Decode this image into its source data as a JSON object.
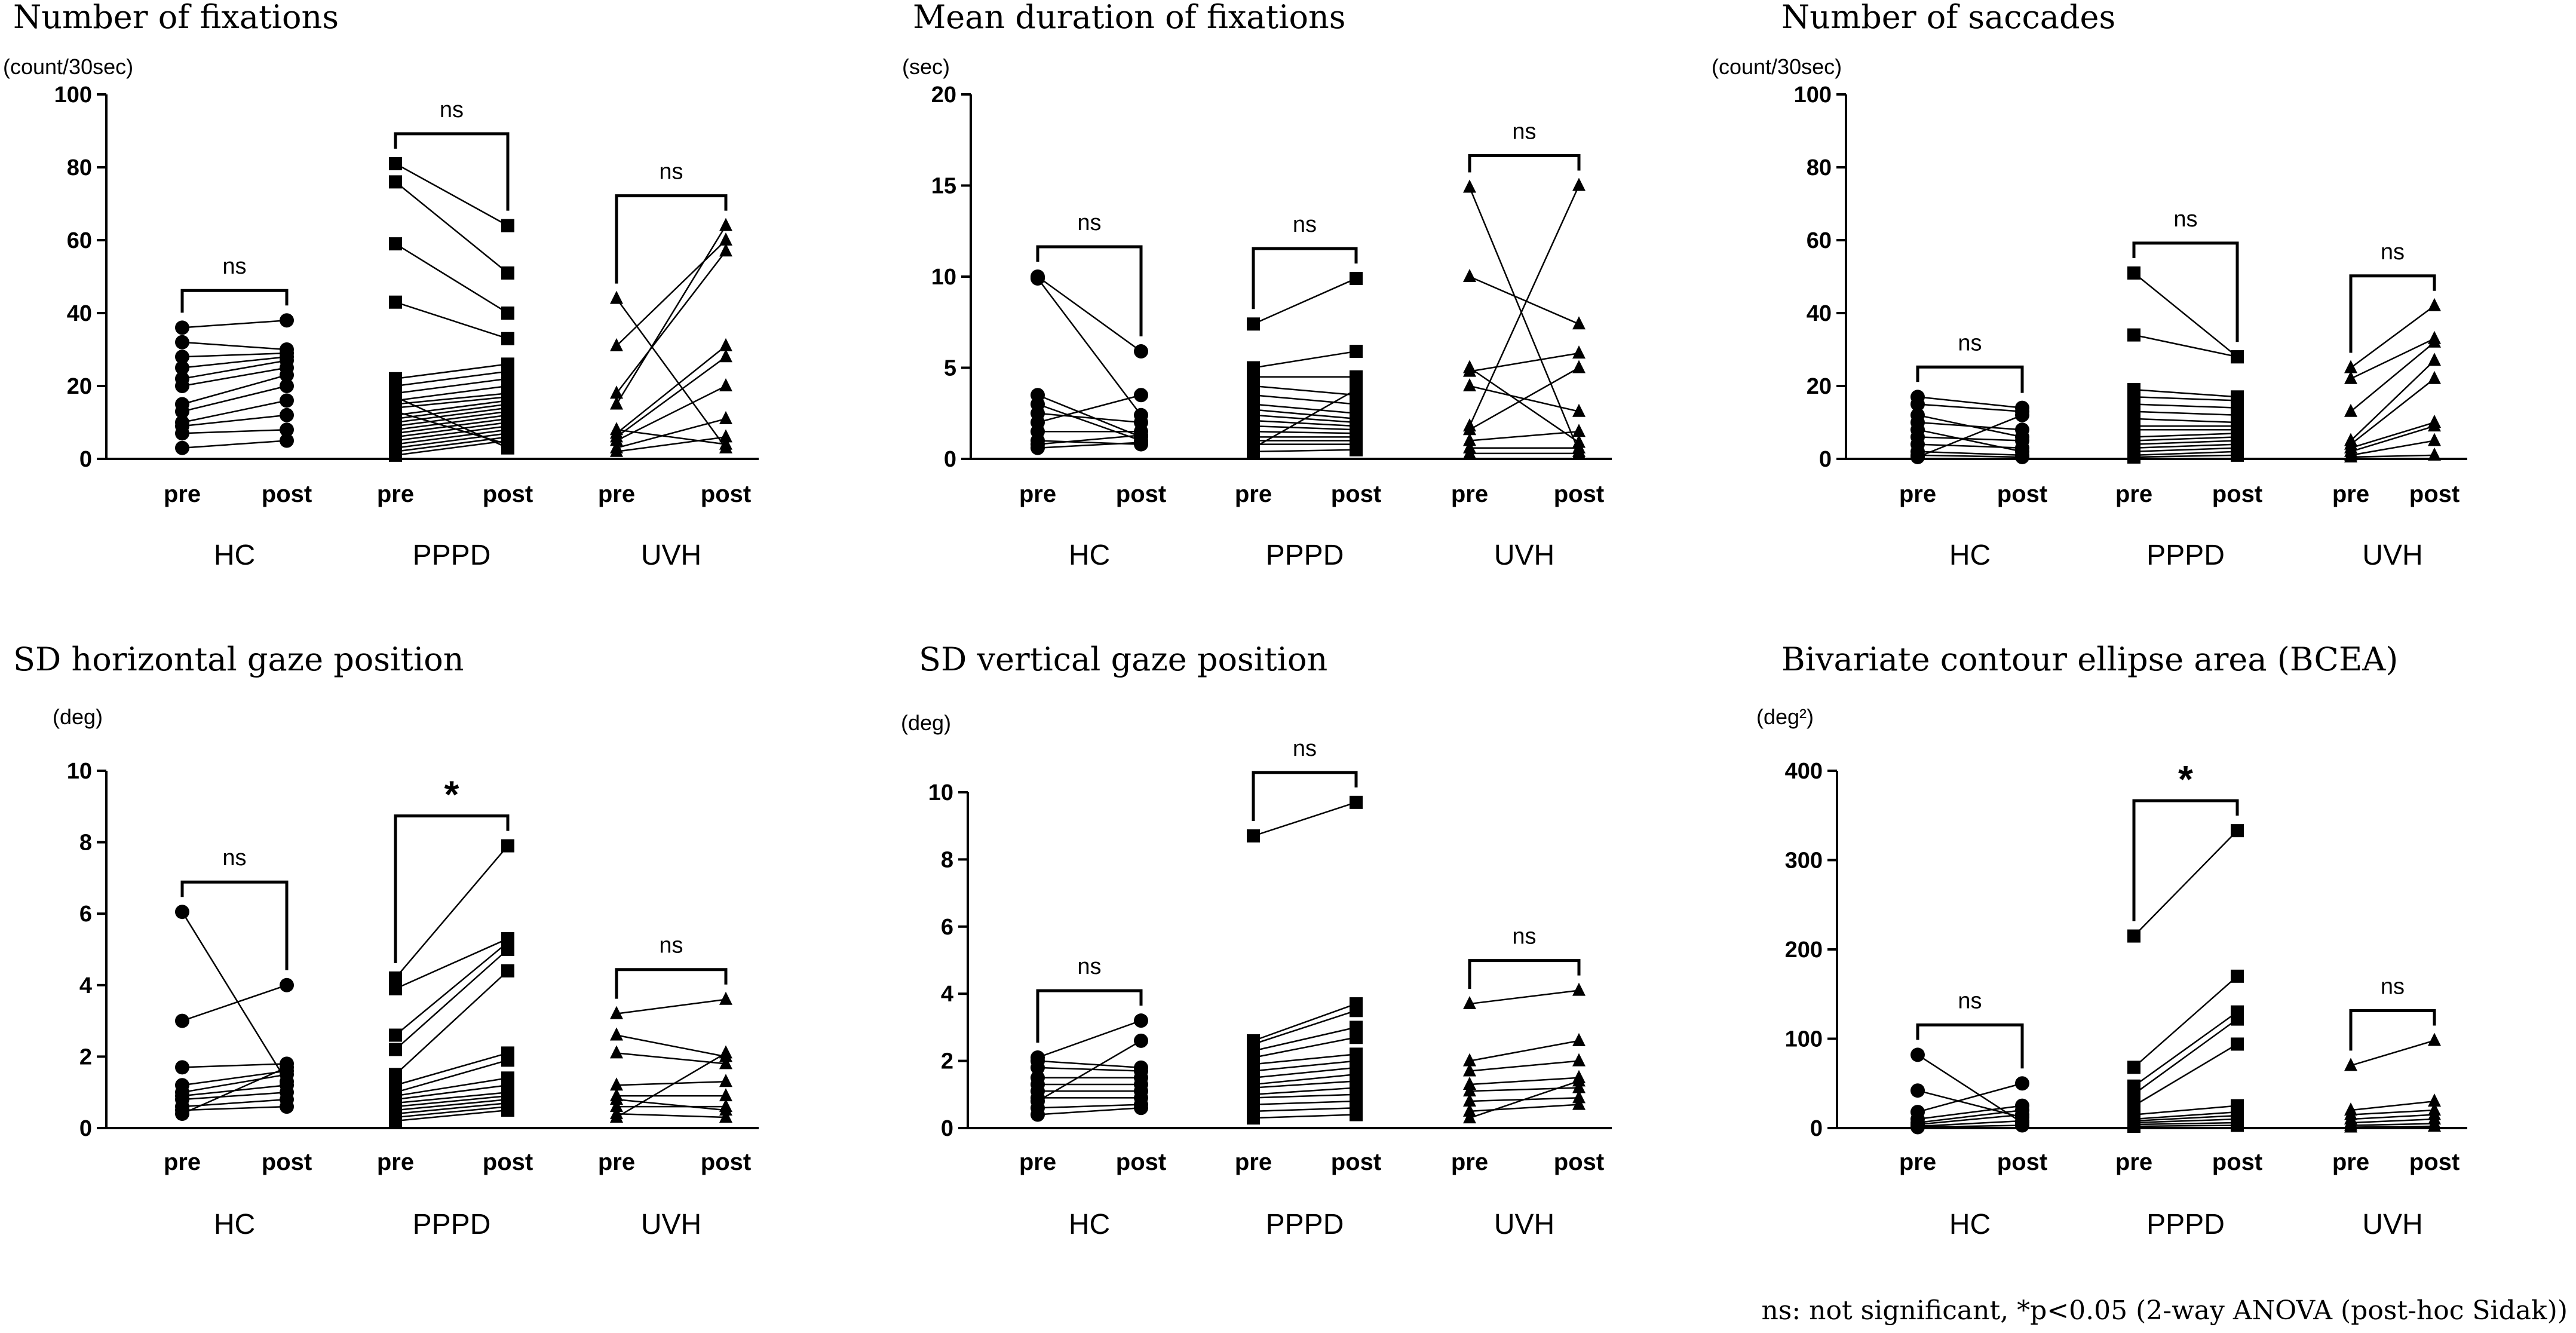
{
  "footnote": "ns: not significant, *p<0.05 (2-way ANOVA (post-hoc Sidak))",
  "chart_data": [
    {
      "type": "scatter",
      "title": "Number of fixations",
      "unit": "(count/30sec)",
      "ylim": [
        0,
        100
      ],
      "yticks": [
        0,
        20,
        40,
        60,
        80,
        100
      ],
      "timepoints": [
        "pre",
        "post"
      ],
      "groups": [
        {
          "name": "HC",
          "marker": "circle",
          "sig": "ns",
          "pairs": [
            [
              3,
              5
            ],
            [
              7,
              8
            ],
            [
              9,
              12
            ],
            [
              10,
              16
            ],
            [
              13,
              20
            ],
            [
              15,
              23
            ],
            [
              20,
              25
            ],
            [
              22,
              27
            ],
            [
              25,
              28
            ],
            [
              28,
              29
            ],
            [
              32,
              30
            ],
            [
              36,
              38
            ]
          ]
        },
        {
          "name": "PPPD",
          "marker": "square",
          "sig": "ns",
          "pairs": [
            [
              81,
              64
            ],
            [
              76,
              51
            ],
            [
              59,
              40
            ],
            [
              43,
              33
            ],
            [
              22,
              26
            ],
            [
              20,
              24
            ],
            [
              18,
              22
            ],
            [
              16,
              20
            ],
            [
              15,
              18
            ],
            [
              14,
              17
            ],
            [
              12,
              16
            ],
            [
              11,
              15
            ],
            [
              10,
              14
            ],
            [
              9,
              13
            ],
            [
              8,
              12
            ],
            [
              7,
              11
            ],
            [
              6,
              10
            ],
            [
              5,
              9
            ],
            [
              4,
              8
            ],
            [
              3,
              7
            ],
            [
              2,
              6
            ],
            [
              1,
              5
            ],
            [
              13,
              4
            ],
            [
              17,
              3
            ]
          ]
        },
        {
          "name": "UVH",
          "marker": "triangle",
          "sig": "ns",
          "pairs": [
            [
              44,
              3
            ],
            [
              31,
              60
            ],
            [
              18,
              57
            ],
            [
              15,
              64
            ],
            [
              7,
              31
            ],
            [
              6,
              28
            ],
            [
              5,
              20
            ],
            [
              3,
              11
            ],
            [
              2,
              6
            ],
            [
              8,
              4
            ]
          ]
        }
      ]
    },
    {
      "type": "scatter",
      "title": "Mean duration of fixations",
      "unit": "(sec)",
      "ylim": [
        0,
        20
      ],
      "yticks": [
        0,
        5,
        10,
        15,
        20
      ],
      "timepoints": [
        "pre",
        "post"
      ],
      "groups": [
        {
          "name": "HC",
          "marker": "circle",
          "sig": "ns",
          "pairs": [
            [
              10,
              5.9
            ],
            [
              9.9,
              2.4
            ],
            [
              3.5,
              1.2
            ],
            [
              3,
              1
            ],
            [
              2.5,
              2
            ],
            [
              2,
              3.5
            ],
            [
              1.5,
              1.5
            ],
            [
              1,
              0.8
            ],
            [
              0.8,
              1.3
            ],
            [
              0.6,
              0.9
            ]
          ]
        },
        {
          "name": "PPPD",
          "marker": "square",
          "sig": "ns",
          "pairs": [
            [
              7.4,
              9.9
            ],
            [
              5,
              5.9
            ],
            [
              4.5,
              4.5
            ],
            [
              4,
              3.5
            ],
            [
              3.5,
              3
            ],
            [
              3,
              2.5
            ],
            [
              2.7,
              2.2
            ],
            [
              2.4,
              2
            ],
            [
              2.1,
              1.8
            ],
            [
              1.8,
              1.6
            ],
            [
              1.5,
              1.4
            ],
            [
              1.2,
              1.2
            ],
            [
              1,
              1
            ],
            [
              0.8,
              0.8
            ],
            [
              0.6,
              3.8
            ],
            [
              0.4,
              0.5
            ]
          ]
        },
        {
          "name": "UVH",
          "marker": "triangle",
          "sig": "ns",
          "pairs": [
            [
              14.9,
              0.4
            ],
            [
              10,
              7.4
            ],
            [
              5,
              0.9
            ],
            [
              4.8,
              5.8
            ],
            [
              4,
              2.6
            ],
            [
              1.8,
              15
            ],
            [
              1.6,
              5
            ],
            [
              1,
              1.5
            ],
            [
              0.6,
              0.6
            ],
            [
              0.3,
              0.3
            ]
          ]
        }
      ]
    },
    {
      "type": "scatter",
      "title": "Number of saccades",
      "unit": "(count/30sec)",
      "ylim": [
        0,
        100
      ],
      "yticks": [
        0,
        20,
        40,
        60,
        80,
        100
      ],
      "timepoints": [
        "pre",
        "post"
      ],
      "groups": [
        {
          "name": "HC",
          "marker": "circle",
          "sig": "ns",
          "pairs": [
            [
              17,
              14
            ],
            [
              15,
              13
            ],
            [
              12,
              6
            ],
            [
              10,
              8
            ],
            [
              8,
              2
            ],
            [
              6,
              5
            ],
            [
              4,
              3
            ],
            [
              2,
              1
            ],
            [
              1,
              0.5
            ],
            [
              0.5,
              12
            ]
          ]
        },
        {
          "name": "PPPD",
          "marker": "square",
          "sig": "ns",
          "pairs": [
            [
              51,
              28
            ],
            [
              34,
              28
            ],
            [
              19,
              17
            ],
            [
              17,
              16
            ],
            [
              15,
              14
            ],
            [
              13,
              12
            ],
            [
              11,
              10
            ],
            [
              9,
              9
            ],
            [
              8,
              8
            ],
            [
              6,
              7
            ],
            [
              5,
              6
            ],
            [
              4,
              5
            ],
            [
              3,
              4
            ],
            [
              2,
              3
            ],
            [
              1,
              2
            ],
            [
              0.5,
              1
            ]
          ]
        },
        {
          "name": "UVH",
          "marker": "triangle",
          "sig": "ns",
          "pairs": [
            [
              25,
              42
            ],
            [
              22,
              33
            ],
            [
              13,
              32
            ],
            [
              5,
              27
            ],
            [
              4,
              22
            ],
            [
              3,
              10
            ],
            [
              2,
              9
            ],
            [
              1,
              5
            ],
            [
              0.5,
              1
            ]
          ]
        }
      ]
    },
    {
      "type": "scatter",
      "title": "SD horizontal gaze position",
      "unit": "(deg)",
      "ylim": [
        0,
        10
      ],
      "yticks": [
        0,
        2,
        4,
        6,
        8,
        10
      ],
      "timepoints": [
        "pre",
        "post"
      ],
      "groups": [
        {
          "name": "HC",
          "marker": "circle",
          "sig": "ns",
          "pairs": [
            [
              6.05,
              1.3
            ],
            [
              3,
              4
            ],
            [
              1.7,
              1.8
            ],
            [
              1.2,
              1.6
            ],
            [
              1,
              1.5
            ],
            [
              0.9,
              1.2
            ],
            [
              0.8,
              1
            ],
            [
              0.6,
              0.8
            ],
            [
              0.5,
              0.6
            ],
            [
              0.4,
              1.7
            ]
          ]
        },
        {
          "name": "PPPD",
          "marker": "square",
          "sig": "*",
          "pairs": [
            [
              4.2,
              7.9
            ],
            [
              3.9,
              5.3
            ],
            [
              2.6,
              5.2
            ],
            [
              2.2,
              5
            ],
            [
              1.5,
              4.4
            ],
            [
              1.2,
              2.1
            ],
            [
              1,
              1.9
            ],
            [
              0.9,
              1.4
            ],
            [
              0.8,
              1.2
            ],
            [
              0.7,
              1
            ],
            [
              0.6,
              0.9
            ],
            [
              0.5,
              0.8
            ],
            [
              0.4,
              0.7
            ],
            [
              0.3,
              0.6
            ],
            [
              0.2,
              0.5
            ]
          ]
        },
        {
          "name": "UVH",
          "marker": "triangle",
          "sig": "ns",
          "pairs": [
            [
              3.2,
              3.6
            ],
            [
              2.6,
              2
            ],
            [
              2.1,
              1.8
            ],
            [
              1.2,
              1.3
            ],
            [
              0.9,
              0.9
            ],
            [
              0.8,
              0.5
            ],
            [
              0.6,
              0.6
            ],
            [
              0.4,
              0.3
            ],
            [
              0.3,
              2.1
            ]
          ]
        }
      ]
    },
    {
      "type": "scatter",
      "title": "SD vertical gaze position",
      "unit": "(deg)",
      "ylim": [
        0,
        10
      ],
      "yticks": [
        0,
        2,
        4,
        6,
        8,
        10
      ],
      "timepoints": [
        "pre",
        "post"
      ],
      "groups": [
        {
          "name": "HC",
          "marker": "circle",
          "sig": "ns",
          "pairs": [
            [
              2.1,
              3.2
            ],
            [
              2,
              1.8
            ],
            [
              1.8,
              1.7
            ],
            [
              1.5,
              1.5
            ],
            [
              1.3,
              1.3
            ],
            [
              1.1,
              1.1
            ],
            [
              0.9,
              0.9
            ],
            [
              0.8,
              2.6
            ],
            [
              0.6,
              0.7
            ],
            [
              0.4,
              0.6
            ]
          ]
        },
        {
          "name": "PPPD",
          "marker": "square",
          "sig": "ns",
          "pairs": [
            [
              8.7,
              9.7
            ],
            [
              2.6,
              3.7
            ],
            [
              2.5,
              3.5
            ],
            [
              2.3,
              3
            ],
            [
              2.1,
              2.7
            ],
            [
              1.9,
              2.2
            ],
            [
              1.7,
              2
            ],
            [
              1.5,
              1.8
            ],
            [
              1.3,
              1.6
            ],
            [
              1.2,
              1.4
            ],
            [
              1,
              1.2
            ],
            [
              0.9,
              1
            ],
            [
              0.7,
              0.8
            ],
            [
              0.5,
              0.6
            ],
            [
              0.3,
              0.4
            ]
          ]
        },
        {
          "name": "UVH",
          "marker": "triangle",
          "sig": "ns",
          "pairs": [
            [
              3.7,
              4.1
            ],
            [
              2,
              2.6
            ],
            [
              1.7,
              2
            ],
            [
              1.3,
              1.5
            ],
            [
              1.1,
              1.2
            ],
            [
              0.8,
              0.9
            ],
            [
              0.5,
              0.7
            ],
            [
              0.3,
              1.4
            ]
          ]
        }
      ]
    },
    {
      "type": "scatter",
      "title": "Bivariate contour ellipse area (BCEA)",
      "unit": "(deg²)",
      "ylim": [
        0,
        400
      ],
      "yticks": [
        0,
        100,
        200,
        300,
        400
      ],
      "timepoints": [
        "pre",
        "post"
      ],
      "groups": [
        {
          "name": "HC",
          "marker": "circle",
          "sig": "ns",
          "pairs": [
            [
              82,
              6
            ],
            [
              42,
              12
            ],
            [
              18,
              50
            ],
            [
              10,
              25
            ],
            [
              6,
              20
            ],
            [
              4,
              15
            ],
            [
              2,
              8
            ],
            [
              1,
              3
            ]
          ]
        },
        {
          "name": "PPPD",
          "marker": "square",
          "sig": "*",
          "pairs": [
            [
              215,
              333
            ],
            [
              68,
              170
            ],
            [
              47,
              130
            ],
            [
              38,
              122
            ],
            [
              25,
              94
            ],
            [
              15,
              25
            ],
            [
              10,
              18
            ],
            [
              8,
              14
            ],
            [
              6,
              10
            ],
            [
              4,
              6
            ],
            [
              2,
              3
            ]
          ]
        },
        {
          "name": "UVH",
          "marker": "triangle",
          "sig": "ns",
          "pairs": [
            [
              70,
              98
            ],
            [
              20,
              30
            ],
            [
              15,
              20
            ],
            [
              10,
              15
            ],
            [
              6,
              10
            ],
            [
              3,
              5
            ],
            [
              1,
              2
            ]
          ]
        }
      ]
    }
  ]
}
